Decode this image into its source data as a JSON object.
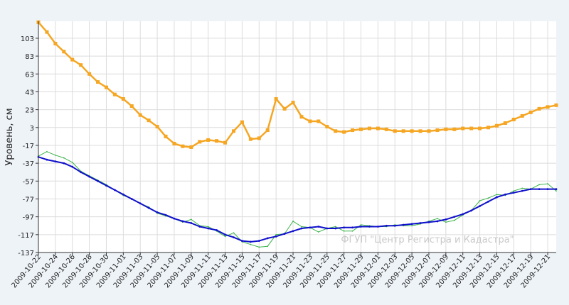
{
  "chart_data": {
    "type": "line",
    "ylabel": "Уровень, см",
    "watermark": "ФГУП \"Центр Регистра и Кадастра\"",
    "ylim": [
      -137,
      122
    ],
    "yticks": [
      103,
      83,
      63,
      43,
      23,
      3,
      -17,
      -37,
      -57,
      -77,
      -97,
      -117,
      -137
    ],
    "x_range": [
      "2009-10-22",
      "2009-12-22"
    ],
    "x_tick_labels": [
      "2009-10-22",
      "2009-10-24",
      "2009-10-26",
      "2009-10-28",
      "2009-10-30",
      "2009-11-01",
      "2009-11-03",
      "2009-11-05",
      "2009-11-07",
      "2009-11-09",
      "2009-11-11",
      "2009-11-13",
      "2009-11-15",
      "2009-11-17",
      "2009-11-19",
      "2009-11-21",
      "2009-11-23",
      "2009-11-25",
      "2009-11-27",
      "2009-11-29",
      "2009-12-01",
      "2009-12-03",
      "2009-12-05",
      "2009-12-07",
      "2009-12-09",
      "2009-12-11",
      "2009-12-13",
      "2009-12-15",
      "2009-12-17",
      "2009-12-19",
      "2009-12-21"
    ],
    "grid": true,
    "colors": {
      "background": "#eef3f8",
      "plot": "#ffffff",
      "grid": "#dcdcdc",
      "axis": "#333333"
    },
    "series": [
      {
        "color": "#f5a623",
        "marker": "square",
        "x": [
          "2009-10-22",
          "2009-10-23",
          "2009-10-24",
          "2009-10-25",
          "2009-10-26",
          "2009-10-27",
          "2009-10-28",
          "2009-10-29",
          "2009-10-30",
          "2009-10-31",
          "2009-11-01",
          "2009-11-02",
          "2009-11-03",
          "2009-11-04",
          "2009-11-05",
          "2009-11-06",
          "2009-11-07",
          "2009-11-08",
          "2009-11-09",
          "2009-11-10",
          "2009-11-11",
          "2009-11-12",
          "2009-11-13",
          "2009-11-14",
          "2009-11-15",
          "2009-11-16",
          "2009-11-17",
          "2009-11-18",
          "2009-11-19",
          "2009-11-20",
          "2009-11-21",
          "2009-11-22",
          "2009-11-23",
          "2009-11-24",
          "2009-11-25",
          "2009-11-26",
          "2009-11-27",
          "2009-11-28",
          "2009-11-29",
          "2009-11-30",
          "2009-12-01",
          "2009-12-02",
          "2009-12-03",
          "2009-12-04",
          "2009-12-05",
          "2009-12-06",
          "2009-12-07",
          "2009-12-08",
          "2009-12-09",
          "2009-12-10",
          "2009-12-11",
          "2009-12-12",
          "2009-12-13",
          "2009-12-14",
          "2009-12-15",
          "2009-12-16",
          "2009-12-17",
          "2009-12-18",
          "2009-12-19",
          "2009-12-20",
          "2009-12-21",
          "2009-12-22"
        ],
        "y": [
          121,
          110,
          97,
          88,
          79,
          73,
          63,
          54,
          48,
          40,
          35,
          27,
          17,
          11,
          4,
          -7,
          -15,
          -18,
          -19,
          -13,
          -11,
          -12,
          -14,
          -1,
          9,
          -10,
          -9,
          0,
          35,
          24,
          31,
          15,
          10,
          10,
          4,
          -1,
          -2,
          0,
          1,
          2,
          2,
          1,
          -1,
          -1,
          -1,
          -1,
          -1,
          0,
          1,
          1,
          2,
          2,
          2,
          3,
          5,
          8,
          12,
          16,
          20,
          24,
          26,
          28
        ]
      },
      {
        "color": "#1010cc",
        "marker": "none",
        "x": [
          "2009-10-22",
          "2009-10-23",
          "2009-10-24",
          "2009-10-25",
          "2009-10-26",
          "2009-10-27",
          "2009-10-28",
          "2009-10-29",
          "2009-10-30",
          "2009-10-31",
          "2009-11-01",
          "2009-11-02",
          "2009-11-03",
          "2009-11-04",
          "2009-11-05",
          "2009-11-06",
          "2009-11-07",
          "2009-11-08",
          "2009-11-09",
          "2009-11-10",
          "2009-11-11",
          "2009-11-12",
          "2009-11-13",
          "2009-11-14",
          "2009-11-15",
          "2009-11-16",
          "2009-11-17",
          "2009-11-18",
          "2009-11-19",
          "2009-11-20",
          "2009-11-21",
          "2009-11-22",
          "2009-11-23",
          "2009-11-24",
          "2009-11-25",
          "2009-11-26",
          "2009-11-27",
          "2009-11-28",
          "2009-11-29",
          "2009-11-30",
          "2009-12-01",
          "2009-12-02",
          "2009-12-03",
          "2009-12-04",
          "2009-12-05",
          "2009-12-06",
          "2009-12-07",
          "2009-12-08",
          "2009-12-09",
          "2009-12-10",
          "2009-12-11",
          "2009-12-12",
          "2009-12-13",
          "2009-12-14",
          "2009-12-15",
          "2009-12-16",
          "2009-12-17",
          "2009-12-18",
          "2009-12-19",
          "2009-12-20",
          "2009-12-21",
          "2009-12-22"
        ],
        "y": [
          -30,
          -33,
          -35,
          -37,
          -41,
          -47,
          -52,
          -57,
          -62,
          -67,
          -72,
          -77,
          -82,
          -87,
          -92,
          -95,
          -99,
          -102,
          -104,
          -108,
          -110,
          -112,
          -117,
          -120,
          -124,
          -125,
          -124,
          -121,
          -119,
          -116,
          -113,
          -110,
          -109,
          -108,
          -110,
          -110,
          -109,
          -109,
          -108,
          -108,
          -108,
          -107,
          -107,
          -106,
          -105,
          -104,
          -103,
          -102,
          -100,
          -97,
          -94,
          -90,
          -85,
          -80,
          -75,
          -72,
          -70,
          -68,
          -66,
          -66,
          -66,
          -66
        ]
      },
      {
        "color": "#3cb34a",
        "marker": "none",
        "x": [
          "2009-10-22",
          "2009-10-23",
          "2009-10-24",
          "2009-10-25",
          "2009-10-26",
          "2009-10-27",
          "2009-10-28",
          "2009-10-29",
          "2009-10-30",
          "2009-10-31",
          "2009-11-01",
          "2009-11-02",
          "2009-11-03",
          "2009-11-04",
          "2009-11-05",
          "2009-11-06",
          "2009-11-07",
          "2009-11-08",
          "2009-11-09",
          "2009-11-10",
          "2009-11-11",
          "2009-11-12",
          "2009-11-13",
          "2009-11-14",
          "2009-11-15",
          "2009-11-16",
          "2009-11-17",
          "2009-11-18",
          "2009-11-19",
          "2009-11-20",
          "2009-11-21",
          "2009-11-22",
          "2009-11-23",
          "2009-11-24",
          "2009-11-25",
          "2009-11-26",
          "2009-11-27",
          "2009-11-28",
          "2009-11-29",
          "2009-11-30",
          "2009-12-01",
          "2009-12-02",
          "2009-12-03",
          "2009-12-04",
          "2009-12-05",
          "2009-12-06",
          "2009-12-07",
          "2009-12-08",
          "2009-12-09",
          "2009-12-10",
          "2009-12-11",
          "2009-12-12",
          "2009-12-13",
          "2009-12-14",
          "2009-12-15",
          "2009-12-16",
          "2009-12-17",
          "2009-12-18",
          "2009-12-19",
          "2009-12-20",
          "2009-12-21",
          "2009-12-22"
        ],
        "y": [
          -29,
          -24,
          -28,
          -31,
          -36,
          -46,
          -51,
          -56,
          -61,
          -67,
          -73,
          -77,
          -82,
          -86,
          -93,
          -96,
          -99,
          -103,
          -100,
          -107,
          -108,
          -113,
          -119,
          -115,
          -125,
          -128,
          -131,
          -130,
          -117,
          -116,
          -102,
          -108,
          -109,
          -114,
          -110,
          -108,
          -113,
          -113,
          -106,
          -107,
          -108,
          -108,
          -106,
          -107,
          -107,
          -105,
          -102,
          -99,
          -103,
          -101,
          -95,
          -90,
          -79,
          -76,
          -72,
          -73,
          -68,
          -65,
          -66,
          -61,
          -60,
          -68
        ]
      }
    ]
  }
}
